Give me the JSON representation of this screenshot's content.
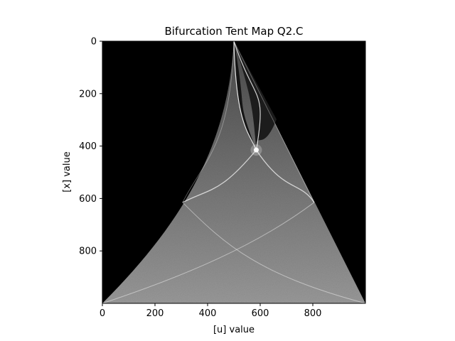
{
  "chart_data": {
    "type": "heatmap",
    "title": "Bifurcation Tent Map Q2.C",
    "xlabel": "[u] value",
    "ylabel": "[x] value",
    "xlim": [
      0,
      1000
    ],
    "ylim": [
      1000,
      0
    ],
    "x_ticks": [
      0,
      200,
      400,
      600,
      800
    ],
    "y_ticks": [
      0,
      200,
      400,
      600,
      800
    ],
    "grid": false,
    "colormap": "gray",
    "background_color": "#000000",
    "description_of_data": "Tent map bifurcation density; x values (rows, top=0) vs u values (columns). Nonzero density lies inside the triangle with apex near (u=500, x=0), bounded by a concave curve on the left to (0,1000) and a straight line on the right to (1000,1000). Bright period-doubling point near (u=585, x=415).",
    "apex": [
      500,
      0
    ],
    "focus_point": [
      585,
      415
    ],
    "left_knee": [
      305,
      615
    ],
    "right_knee": [
      805,
      615
    ]
  }
}
